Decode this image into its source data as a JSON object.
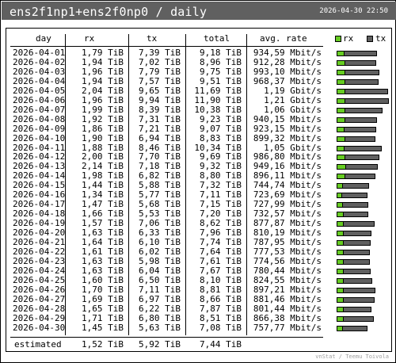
{
  "title": "ens2f1np1+ens2f0np0 / daily",
  "timestamp": "2026-04-30 22:50",
  "colors": {
    "header_bg": "#606060",
    "rx": "#66cc22",
    "tx": "#606060"
  },
  "columns": {
    "day": "day",
    "rx": "rx",
    "tx": "tx",
    "total": "total",
    "avg_rate": "avg. rate"
  },
  "legend": {
    "rx": "rx",
    "tx": "tx"
  },
  "rows": [
    {
      "day": "2026-04-01",
      "rx": "1,79 TiB",
      "tx": "7,39 TiB",
      "total": "9,18 TiB",
      "rate": "934,59 Mbit/s",
      "rx_tib": 1.79,
      "tx_tib": 7.39
    },
    {
      "day": "2026-04-02",
      "rx": "1,94 TiB",
      "tx": "7,02 TiB",
      "total": "8,96 TiB",
      "rate": "912,28 Mbit/s",
      "rx_tib": 1.94,
      "tx_tib": 7.02
    },
    {
      "day": "2026-04-03",
      "rx": "1,96 TiB",
      "tx": "7,79 TiB",
      "total": "9,75 TiB",
      "rate": "993,10 Mbit/s",
      "rx_tib": 1.96,
      "tx_tib": 7.79
    },
    {
      "day": "2026-04-04",
      "rx": "1,94 TiB",
      "tx": "7,57 TiB",
      "total": "9,51 TiB",
      "rate": "968,37 Mbit/s",
      "rx_tib": 1.94,
      "tx_tib": 7.57
    },
    {
      "day": "2026-04-05",
      "rx": "2,04 TiB",
      "tx": "9,65 TiB",
      "total": "11,69 TiB",
      "rate": "1,19 Gbit/s",
      "rx_tib": 2.04,
      "tx_tib": 9.65
    },
    {
      "day": "2026-04-06",
      "rx": "1,96 TiB",
      "tx": "9,94 TiB",
      "total": "11,90 TiB",
      "rate": "1,21 Gbit/s",
      "rx_tib": 1.96,
      "tx_tib": 9.94
    },
    {
      "day": "2026-04-07",
      "rx": "1,99 TiB",
      "tx": "8,39 TiB",
      "total": "10,38 TiB",
      "rate": "1,06 Gbit/s",
      "rx_tib": 1.99,
      "tx_tib": 8.39
    },
    {
      "day": "2026-04-08",
      "rx": "1,92 TiB",
      "tx": "7,31 TiB",
      "total": "9,23 TiB",
      "rate": "940,15 Mbit/s",
      "rx_tib": 1.92,
      "tx_tib": 7.31
    },
    {
      "day": "2026-04-09",
      "rx": "1,86 TiB",
      "tx": "7,21 TiB",
      "total": "9,07 TiB",
      "rate": "923,15 Mbit/s",
      "rx_tib": 1.86,
      "tx_tib": 7.21
    },
    {
      "day": "2026-04-10",
      "rx": "1,90 TiB",
      "tx": "6,94 TiB",
      "total": "8,83 TiB",
      "rate": "899,32 Mbit/s",
      "rx_tib": 1.9,
      "tx_tib": 6.94
    },
    {
      "day": "2026-04-11",
      "rx": "1,88 TiB",
      "tx": "8,46 TiB",
      "total": "10,34 TiB",
      "rate": "1,05 Gbit/s",
      "rx_tib": 1.88,
      "tx_tib": 8.46
    },
    {
      "day": "2026-04-12",
      "rx": "2,00 TiB",
      "tx": "7,70 TiB",
      "total": "9,69 TiB",
      "rate": "986,80 Mbit/s",
      "rx_tib": 2.0,
      "tx_tib": 7.7
    },
    {
      "day": "2026-04-13",
      "rx": "2,14 TiB",
      "tx": "7,18 TiB",
      "total": "9,32 TiB",
      "rate": "949,16 Mbit/s",
      "rx_tib": 2.14,
      "tx_tib": 7.18
    },
    {
      "day": "2026-04-14",
      "rx": "1,98 TiB",
      "tx": "6,82 TiB",
      "total": "8,80 TiB",
      "rate": "896,11 Mbit/s",
      "rx_tib": 1.98,
      "tx_tib": 6.82
    },
    {
      "day": "2026-04-15",
      "rx": "1,44 TiB",
      "tx": "5,88 TiB",
      "total": "7,32 TiB",
      "rate": "744,74 Mbit/s",
      "rx_tib": 1.44,
      "tx_tib": 5.88
    },
    {
      "day": "2026-04-16",
      "rx": "1,34 TiB",
      "tx": "5,77 TiB",
      "total": "7,11 TiB",
      "rate": "723,69 Mbit/s",
      "rx_tib": 1.34,
      "tx_tib": 5.77
    },
    {
      "day": "2026-04-17",
      "rx": "1,47 TiB",
      "tx": "5,68 TiB",
      "total": "7,15 TiB",
      "rate": "727,99 Mbit/s",
      "rx_tib": 1.47,
      "tx_tib": 5.68
    },
    {
      "day": "2026-04-18",
      "rx": "1,66 TiB",
      "tx": "5,53 TiB",
      "total": "7,20 TiB",
      "rate": "732,57 Mbit/s",
      "rx_tib": 1.66,
      "tx_tib": 5.53
    },
    {
      "day": "2026-04-19",
      "rx": "1,57 TiB",
      "tx": "7,06 TiB",
      "total": "8,62 TiB",
      "rate": "877,87 Mbit/s",
      "rx_tib": 1.57,
      "tx_tib": 7.06
    },
    {
      "day": "2026-04-20",
      "rx": "1,63 TiB",
      "tx": "6,33 TiB",
      "total": "7,96 TiB",
      "rate": "810,19 Mbit/s",
      "rx_tib": 1.63,
      "tx_tib": 6.33
    },
    {
      "day": "2026-04-21",
      "rx": "1,64 TiB",
      "tx": "6,10 TiB",
      "total": "7,74 TiB",
      "rate": "787,95 Mbit/s",
      "rx_tib": 1.64,
      "tx_tib": 6.1
    },
    {
      "day": "2026-04-22",
      "rx": "1,61 TiB",
      "tx": "6,02 TiB",
      "total": "7,64 TiB",
      "rate": "777,53 Mbit/s",
      "rx_tib": 1.61,
      "tx_tib": 6.02
    },
    {
      "day": "2026-04-23",
      "rx": "1,63 TiB",
      "tx": "5,98 TiB",
      "total": "7,61 TiB",
      "rate": "774,56 Mbit/s",
      "rx_tib": 1.63,
      "tx_tib": 5.98
    },
    {
      "day": "2026-04-24",
      "rx": "1,63 TiB",
      "tx": "6,04 TiB",
      "total": "7,67 TiB",
      "rate": "780,44 Mbit/s",
      "rx_tib": 1.63,
      "tx_tib": 6.04
    },
    {
      "day": "2026-04-25",
      "rx": "1,60 TiB",
      "tx": "6,50 TiB",
      "total": "8,10 TiB",
      "rate": "824,55 Mbit/s",
      "rx_tib": 1.6,
      "tx_tib": 6.5
    },
    {
      "day": "2026-04-26",
      "rx": "1,70 TiB",
      "tx": "7,11 TiB",
      "total": "8,81 TiB",
      "rate": "897,21 Mbit/s",
      "rx_tib": 1.7,
      "tx_tib": 7.11
    },
    {
      "day": "2026-04-27",
      "rx": "1,69 TiB",
      "tx": "6,97 TiB",
      "total": "8,66 TiB",
      "rate": "881,46 Mbit/s",
      "rx_tib": 1.69,
      "tx_tib": 6.97
    },
    {
      "day": "2026-04-28",
      "rx": "1,65 TiB",
      "tx": "6,22 TiB",
      "total": "7,87 TiB",
      "rate": "801,44 Mbit/s",
      "rx_tib": 1.65,
      "tx_tib": 6.22
    },
    {
      "day": "2026-04-29",
      "rx": "1,71 TiB",
      "tx": "6,80 TiB",
      "total": "8,51 TiB",
      "rate": "866,38 Mbit/s",
      "rx_tib": 1.71,
      "tx_tib": 6.8
    },
    {
      "day": "2026-04-30",
      "rx": "1,45 TiB",
      "tx": "5,63 TiB",
      "total": "7,08 TiB",
      "rate": "757,77 Mbit/s",
      "rx_tib": 1.45,
      "tx_tib": 5.63
    }
  ],
  "estimated": {
    "label": "estimated",
    "rx": "1,52 TiB",
    "tx": "5,92 TiB",
    "total": "7,44 TiB"
  },
  "footer": "vnStat / Teemu Toivola"
}
